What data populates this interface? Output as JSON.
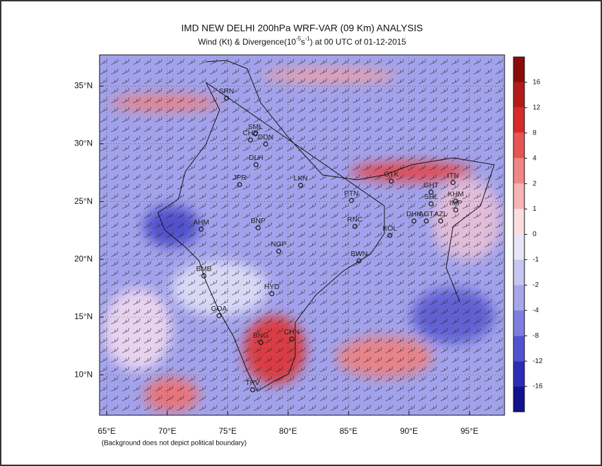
{
  "chart_data": {
    "type": "map",
    "title": "IMD NEW DELHI 200hPa WRF-VAR (09 Km) ANALYSIS",
    "subtitle": [
      "Wind (Kt) & Divergence(10",
      "-5",
      "s",
      "-1",
      ") at 00 UTC of 01-12-2015"
    ],
    "xlim": [
      64.4,
      97.9
    ],
    "ylim": [
      6.5,
      37.7
    ],
    "xticks": [
      {
        "value": 65,
        "label": "65°E"
      },
      {
        "value": 70,
        "label": "70°E"
      },
      {
        "value": 75,
        "label": "75°E"
      },
      {
        "value": 80,
        "label": "80°E"
      },
      {
        "value": 85,
        "label": "85°E"
      },
      {
        "value": 90,
        "label": "90°E"
      },
      {
        "value": 95,
        "label": "95°E"
      }
    ],
    "yticks": [
      {
        "value": 10,
        "label": "10°N"
      },
      {
        "value": 15,
        "label": "15°N"
      },
      {
        "value": 20,
        "label": "20°N"
      },
      {
        "value": 25,
        "label": "25°N"
      },
      {
        "value": 30,
        "label": "30°N"
      },
      {
        "value": 35,
        "label": "35°N"
      }
    ],
    "grid": true,
    "stations": [
      "SRN",
      "SML",
      "CHD",
      "DDN",
      "DLH",
      "JPR",
      "LKN",
      "PTN",
      "GTK",
      "ITN",
      "GHT",
      "SHL",
      "KHM",
      "IMP",
      "DHK",
      "AGT",
      "AZL",
      "AHM",
      "BNP",
      "RNC",
      "KOL",
      "NGP",
      "BWN",
      "BMB",
      "HYD",
      "GOA",
      "CHN",
      "BNG",
      "TRV"
    ],
    "colorbar": {
      "levels": [
        16,
        12,
        8,
        4,
        2,
        1,
        0,
        -1,
        -2,
        -4,
        -8,
        -12,
        -16
      ],
      "colors": [
        "#8b0a0a",
        "#b41a1a",
        "#d62a2a",
        "#e85454",
        "#f08686",
        "#f6b4b4",
        "#fadede",
        "#e6e6f8",
        "#c6c6f0",
        "#a6a6ea",
        "#7e7ee0",
        "#5252d0",
        "#2c2cb8",
        "#12128c"
      ]
    },
    "footnote": "(Background does not depict political boundary)"
  }
}
